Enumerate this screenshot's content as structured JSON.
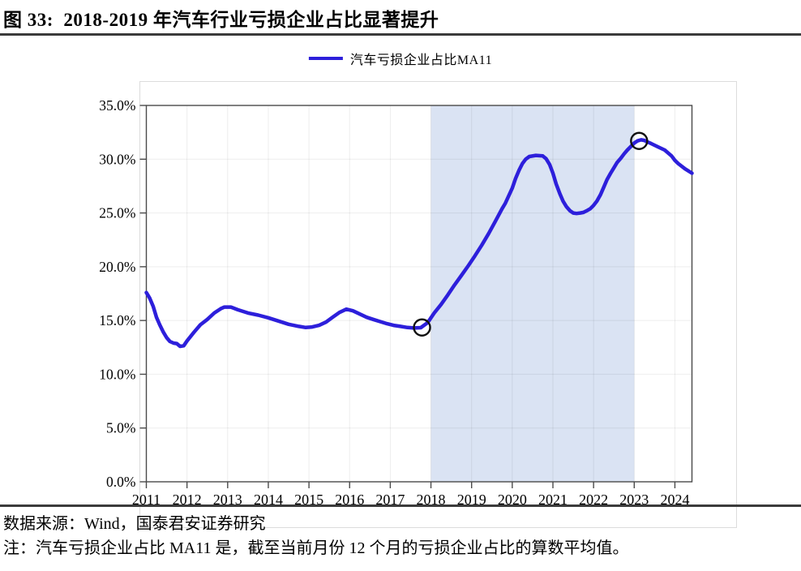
{
  "page": {
    "title": "图 33:  2018-2019 年汽车行业亏损企业占比显著提升",
    "source": "数据来源：Wind，国泰君安证券研究",
    "note": "注：汽车亏损企业占比 MA11 是，截至当前月份 12 个月的亏损企业占比的算数平均值。"
  },
  "colors": {
    "line": "#2d1fdb",
    "band": "#dae3f3",
    "axis": "#4a4a4a",
    "grid": "rgba(0,0,0,0.07)",
    "rule": "#3b3b3b",
    "marker": "#111111",
    "frame": "#dcdcdc"
  },
  "chart_data": {
    "type": "line",
    "title": "2018-2019 年汽车行业亏损企业占比显著提升",
    "legend": {
      "position": "top-center",
      "entries": [
        {
          "label": "汽车亏损企业占比MA11",
          "color": "#2d1fdb"
        }
      ]
    },
    "x_axis": {
      "tick_labels": [
        "2011",
        "2012",
        "2013",
        "2014",
        "2015",
        "2016",
        "2017",
        "2018",
        "2019",
        "2020",
        "2021",
        "2022",
        "2023",
        "2024"
      ],
      "tick_years": [
        2011,
        2012,
        2013,
        2014,
        2015,
        2016,
        2017,
        2018,
        2019,
        2020,
        2021,
        2022,
        2023,
        2024
      ],
      "range": [
        2011,
        2024.45
      ],
      "grid": true
    },
    "y_axis": {
      "tick_labels": [
        "0.0%",
        "5.0%",
        "10.0%",
        "15.0%",
        "20.0%",
        "25.0%",
        "30.0%",
        "35.0%"
      ],
      "tick_values": [
        0,
        5,
        10,
        15,
        20,
        25,
        30,
        35
      ],
      "range": [
        0,
        35
      ],
      "tick_step": 5,
      "format": "percent",
      "grid": true
    },
    "highlight_band": {
      "x_start": 2018,
      "x_end": 2023,
      "color": "#dae3f3"
    },
    "markers": [
      {
        "x": 2017.78,
        "y": 14.35
      },
      {
        "x": 2023.12,
        "y": 31.7
      }
    ],
    "series": [
      {
        "name": "汽车亏损企业占比MA11",
        "color": "#2d1fdb",
        "points": [
          [
            2011.0,
            17.6
          ],
          [
            2011.08,
            17.1
          ],
          [
            2011.17,
            16.3
          ],
          [
            2011.25,
            15.3
          ],
          [
            2011.33,
            14.6
          ],
          [
            2011.42,
            13.9
          ],
          [
            2011.5,
            13.4
          ],
          [
            2011.58,
            13.05
          ],
          [
            2011.67,
            12.9
          ],
          [
            2011.75,
            12.85
          ],
          [
            2011.83,
            12.6
          ],
          [
            2011.92,
            12.65
          ],
          [
            2012.0,
            13.1
          ],
          [
            2012.17,
            13.9
          ],
          [
            2012.33,
            14.6
          ],
          [
            2012.5,
            15.1
          ],
          [
            2012.67,
            15.7
          ],
          [
            2012.83,
            16.1
          ],
          [
            2012.92,
            16.25
          ],
          [
            2013.08,
            16.25
          ],
          [
            2013.25,
            16.0
          ],
          [
            2013.5,
            15.7
          ],
          [
            2013.75,
            15.5
          ],
          [
            2014.0,
            15.25
          ],
          [
            2014.25,
            14.95
          ],
          [
            2014.5,
            14.65
          ],
          [
            2014.75,
            14.45
          ],
          [
            2014.92,
            14.35
          ],
          [
            2015.08,
            14.4
          ],
          [
            2015.25,
            14.55
          ],
          [
            2015.42,
            14.85
          ],
          [
            2015.58,
            15.3
          ],
          [
            2015.75,
            15.75
          ],
          [
            2015.92,
            16.05
          ],
          [
            2016.08,
            15.9
          ],
          [
            2016.25,
            15.6
          ],
          [
            2016.42,
            15.3
          ],
          [
            2016.58,
            15.1
          ],
          [
            2016.75,
            14.9
          ],
          [
            2016.92,
            14.7
          ],
          [
            2017.08,
            14.55
          ],
          [
            2017.25,
            14.45
          ],
          [
            2017.42,
            14.35
          ],
          [
            2017.58,
            14.3
          ],
          [
            2017.75,
            14.33
          ],
          [
            2017.92,
            14.8
          ],
          [
            2018.08,
            15.7
          ],
          [
            2018.25,
            16.5
          ],
          [
            2018.42,
            17.4
          ],
          [
            2018.58,
            18.3
          ],
          [
            2018.75,
            19.2
          ],
          [
            2018.92,
            20.1
          ],
          [
            2019.08,
            21.0
          ],
          [
            2019.25,
            22.0
          ],
          [
            2019.42,
            23.1
          ],
          [
            2019.58,
            24.2
          ],
          [
            2019.75,
            25.4
          ],
          [
            2019.83,
            25.9
          ],
          [
            2020.0,
            27.3
          ],
          [
            2020.08,
            28.2
          ],
          [
            2020.17,
            29.0
          ],
          [
            2020.25,
            29.6
          ],
          [
            2020.33,
            30.0
          ],
          [
            2020.42,
            30.25
          ],
          [
            2020.58,
            30.35
          ],
          [
            2020.75,
            30.3
          ],
          [
            2020.83,
            30.05
          ],
          [
            2020.92,
            29.5
          ],
          [
            2021.0,
            28.7
          ],
          [
            2021.08,
            27.7
          ],
          [
            2021.17,
            26.8
          ],
          [
            2021.25,
            26.1
          ],
          [
            2021.33,
            25.6
          ],
          [
            2021.42,
            25.2
          ],
          [
            2021.5,
            25.0
          ],
          [
            2021.58,
            24.95
          ],
          [
            2021.67,
            25.0
          ],
          [
            2021.75,
            25.05
          ],
          [
            2021.83,
            25.2
          ],
          [
            2021.92,
            25.4
          ],
          [
            2022.0,
            25.7
          ],
          [
            2022.08,
            26.1
          ],
          [
            2022.17,
            26.7
          ],
          [
            2022.25,
            27.4
          ],
          [
            2022.33,
            28.1
          ],
          [
            2022.42,
            28.7
          ],
          [
            2022.5,
            29.2
          ],
          [
            2022.58,
            29.7
          ],
          [
            2022.67,
            30.1
          ],
          [
            2022.75,
            30.5
          ],
          [
            2022.83,
            30.85
          ],
          [
            2022.92,
            31.2
          ],
          [
            2023.0,
            31.5
          ],
          [
            2023.08,
            31.7
          ],
          [
            2023.17,
            31.8
          ],
          [
            2023.25,
            31.75
          ],
          [
            2023.33,
            31.6
          ],
          [
            2023.42,
            31.45
          ],
          [
            2023.58,
            31.15
          ],
          [
            2023.75,
            30.85
          ],
          [
            2023.92,
            30.3
          ],
          [
            2024.0,
            29.9
          ],
          [
            2024.08,
            29.6
          ],
          [
            2024.25,
            29.1
          ],
          [
            2024.42,
            28.7
          ]
        ]
      }
    ]
  }
}
